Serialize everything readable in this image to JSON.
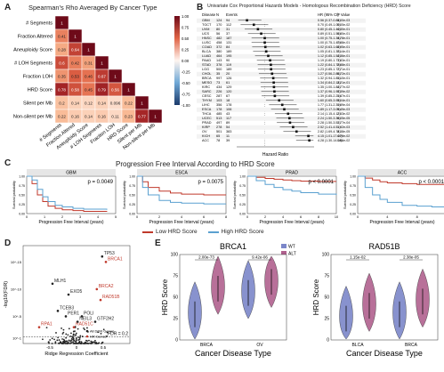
{
  "panel_a": {
    "letter": "A",
    "title": "Spearman's Rho Averaged By Cancer Type",
    "labels": [
      "# Segments",
      "Fraction Altered",
      "Aneuploidy Score",
      "# LOH Segments",
      "Fraction LOH",
      "HRD Score",
      "Silent per Mb",
      "Non-silent per Mb"
    ],
    "colorbar_ticks": [
      "1.00",
      "0.75",
      "0.50",
      "0.25",
      "0.00",
      "-0.25",
      "-0.50",
      "-0.75",
      "-1.00"
    ],
    "chart_data": {
      "type": "heatmap",
      "title": "Spearman's Rho Averaged By Cancer Type",
      "rows": [
        "# Segments",
        "Fraction Altered",
        "Aneuploidy Score",
        "# LOH Segments",
        "Fraction LOH",
        "HRD Score",
        "Silent per Mb",
        "Non-silent per Mb"
      ],
      "columns": [
        "# Segments",
        "Fraction Altered",
        "Aneuploidy Score",
        "# LOH Segments",
        "Fraction LOH",
        "HRD Score",
        "Silent per Mb",
        "Non-silent per Mb"
      ],
      "lower_triangle_values": [
        [
          1
        ],
        [
          0.41,
          1
        ],
        [
          0.28,
          0.64,
          1
        ],
        [
          0.6,
          0.42,
          0.31,
          1
        ],
        [
          0.35,
          0.53,
          0.46,
          0.67,
          1
        ],
        [
          0.78,
          0.58,
          0.45,
          0.79,
          0.56,
          1
        ],
        [
          0.2,
          0.14,
          0.12,
          0.14,
          0.096,
          0.22,
          1
        ],
        [
          0.22,
          0.16,
          0.14,
          0.16,
          0.11,
          0.23,
          0.77,
          1
        ]
      ],
      "color_range": [
        -1,
        1
      ]
    }
  },
  "panel_b": {
    "letter": "B",
    "title": "Univariate Cox Proportional Hazards Models - Homologous Recombination Deficiency (HRD) Score",
    "col_headers": [
      "Disease",
      "N",
      "Events",
      "HR (95% CI)",
      "P Value"
    ],
    "xlabel": "Hazard Ratio",
    "chart_data": {
      "type": "scatter",
      "title": "Univariate Cox Proportional Hazards Models - Homologous Recombination Deficiency (HRD) Score",
      "xlabel": "Hazard Ratio",
      "rows": [
        {
          "disease": "GBM",
          "n": "124",
          "events": "94",
          "hr": 0.56,
          "text": "0.56 (0.37-0.84)",
          "p": "5.00e-03"
        },
        {
          "disease": "TGCT",
          "n": "170",
          "events": "112",
          "hr": 0.7,
          "text": "0.70 (0.49-1.00)",
          "p": "5.00e-02"
        },
        {
          "disease": "UVM",
          "n": "80",
          "events": "31",
          "hr": 0.8,
          "text": "0.80 (0.45-1.40)",
          "p": "4.30e-01"
        },
        {
          "disease": "UCS",
          "n": "56",
          "events": "37",
          "hr": 0.89,
          "text": "0.89 (0.51-1.55)",
          "p": "6.80e-01"
        },
        {
          "disease": "HNSC",
          "n": "482",
          "text": "1.00 (0.75-1.34)",
          "events": "187",
          "hr": 1.0,
          "p": "9.78e-01"
        },
        {
          "disease": "LUSC",
          "n": "458",
          "events": "131",
          "hr": 1.0,
          "text": "1.00 (0.75-1.40)",
          "p": "7.88e-01"
        },
        {
          "disease": "COAD",
          "n": "372",
          "events": "84",
          "hr": 1.02,
          "text": "1.02 (0.63-1.62)",
          "p": "8.95e-01"
        },
        {
          "disease": "BLCA",
          "n": "380",
          "events": "189",
          "hr": 1.05,
          "text": "1.05 (0.81-1.36)",
          "p": "7.14e-01"
        },
        {
          "disease": "LUAD",
          "n": "464",
          "events": "195",
          "hr": 1.12,
          "text": "1.12 (0.85-1.52)",
          "p": "4.36e-01"
        },
        {
          "disease": "PAAD",
          "n": "143",
          "events": "90",
          "hr": 1.19,
          "text": "1.19 (0.80-1.77)",
          "p": "3.83e-01"
        },
        {
          "disease": "STAD",
          "n": "378",
          "events": "119",
          "hr": 1.22,
          "text": "1.22 (0.84-1.78)",
          "p": "2.88e-01"
        },
        {
          "disease": "LGG",
          "n": "500",
          "events": "189",
          "hr": 1.23,
          "text": "1.23 (0.85-1.77)",
          "p": "2.71e-01"
        },
        {
          "disease": "CHOL",
          "n": "35",
          "events": "20",
          "hr": 1.27,
          "text": "1.27 (0.56-2.86)",
          "p": "5.72e-01"
        },
        {
          "disease": "BRCA",
          "n": "997",
          "events": "126",
          "hr": 1.32,
          "text": "1.32 (0.94-1.85)",
          "p": "1.10e-01"
        },
        {
          "disease": "MESO",
          "n": "73",
          "events": "61",
          "hr": 1.34,
          "text": "1.34 (0.84-2.14)",
          "p": "2.21e-01"
        },
        {
          "disease": "KIRC",
          "n": "434",
          "events": "129",
          "hr": 1.35,
          "text": "1.35 (1.00-1.82)",
          "p": "4.77e-02"
        },
        {
          "disease": "SARC",
          "n": "226",
          "events": "120",
          "hr": 1.37,
          "text": "1.37 (0.96-1.97)",
          "p": "8.39e-02"
        },
        {
          "disease": "CESC",
          "n": "287",
          "events": "67",
          "hr": 1.39,
          "text": "1.39 (0.85-2.25)",
          "p": "1.87e-01"
        },
        {
          "disease": "THYM",
          "n": "103",
          "events": "18",
          "hr": 1.6,
          "text": "1.60 (0.65-3.95)",
          "p": "3.04e-01"
        },
        {
          "disease": "LIHC",
          "n": "356",
          "events": "178",
          "hr": 1.77,
          "text": "1.77 (1.31-2.39)",
          "p": "1.89e-04"
        },
        {
          "disease": "ESCA",
          "n": "178",
          "events": "106",
          "hr": 1.89,
          "text": "1.89 (1.17-3.05)",
          "p": "9.49e-03"
        },
        {
          "disease": "THCA",
          "n": "485",
          "events": "43",
          "hr": 2.14,
          "text": "2.14 (1.15-4.12)",
          "p": "2.53e-02"
        },
        {
          "disease": "UCEC",
          "n": "513",
          "events": "117",
          "hr": 2.24,
          "text": "2.24 (1.50-3.36)",
          "p": "9.05e-05"
        },
        {
          "disease": "PRAD",
          "n": "497",
          "events": "89",
          "hr": 2.28,
          "text": "2.28 (1.50-3.52)",
          "p": "1.77e-04"
        },
        {
          "disease": "KIRP",
          "n": "278",
          "events": "54",
          "hr": 2.52,
          "text": "2.52 (1.41-4.51)",
          "p": "1.92e-03"
        },
        {
          "disease": "OV",
          "n": "501",
          "events": "383",
          "hr": 2.82,
          "text": "2.82 (1.69-4.74)",
          "p": "8.38e-05"
        },
        {
          "disease": "KICH",
          "n": "65",
          "events": "11",
          "hr": 4.15,
          "text": "4.15 (1.01-17.05)",
          "p": "4.79e-02"
        },
        {
          "disease": "ACC",
          "n": "78",
          "events": "39",
          "hr": 4.28,
          "text": "4.28 (1.30-14.08)",
          "p": "1.66e-02"
        }
      ]
    }
  },
  "panel_c": {
    "letter": "C",
    "title": "Progression Free Interval According to HRD Score",
    "ylabel": "Survival probability",
    "xlabel": "Progression Free Interval (years)",
    "legend": [
      "Low HRD Score",
      "High HRD Score"
    ],
    "colors": {
      "low": "#c0392b",
      "high": "#5aa0d0"
    },
    "chart_data": [
      {
        "type": "line",
        "title": "GBM",
        "annotation": "p = 0.0049",
        "x_ticks": [
          "0",
          "1",
          "2",
          "3",
          "4",
          "5"
        ],
        "y_ticks": [
          "0.00",
          "0.25",
          "0.50",
          "0.75",
          "1.00"
        ],
        "series": [
          {
            "name": "Low HRD Score",
            "x": [
              0,
              0.3,
              0.6,
              0.9,
              1.2,
              1.6,
              2.0,
              2.6,
              3.2,
              4.5
            ],
            "y": [
              1.0,
              0.8,
              0.5,
              0.32,
              0.2,
              0.14,
              0.1,
              0.08,
              0.06,
              0.05
            ]
          },
          {
            "name": "High HRD Score",
            "x": [
              0,
              0.3,
              0.6,
              0.9,
              1.2,
              1.6,
              2.0,
              2.6,
              3.2,
              4.5
            ],
            "y": [
              1.0,
              0.9,
              0.65,
              0.45,
              0.32,
              0.22,
              0.18,
              0.14,
              0.12,
              0.1
            ]
          }
        ]
      },
      {
        "type": "line",
        "title": "ESCA",
        "annotation": "p = 0.0075",
        "x_ticks": [
          "0",
          "2",
          "4",
          "6",
          "8"
        ],
        "y_ticks": [
          "0.00",
          "0.25",
          "0.50",
          "0.75",
          "1.00"
        ],
        "series": [
          {
            "name": "Low HRD Score",
            "x": [
              0,
              0.5,
              1,
              2,
              3,
              4,
              6,
              8
            ],
            "y": [
              1.0,
              0.85,
              0.7,
              0.6,
              0.55,
              0.52,
              0.5,
              0.5
            ]
          },
          {
            "name": "High HRD Score",
            "x": [
              0,
              0.5,
              1,
              2,
              3,
              4,
              6,
              8
            ],
            "y": [
              1.0,
              0.7,
              0.5,
              0.35,
              0.3,
              0.28,
              0.26,
              0.26
            ]
          }
        ]
      },
      {
        "type": "line",
        "title": "PRAD",
        "annotation": "p < 0.0001",
        "x_ticks": [
          "0",
          "2",
          "4",
          "6",
          "8",
          "10"
        ],
        "y_ticks": [
          "0.00",
          "0.25",
          "0.50",
          "0.75",
          "1.00"
        ],
        "series": [
          {
            "name": "Low HRD Score",
            "x": [
              0,
              1,
              2,
              3,
              4,
              5,
              6,
              8,
              10
            ],
            "y": [
              1.0,
              0.97,
              0.94,
              0.92,
              0.9,
              0.88,
              0.87,
              0.86,
              0.86
            ]
          },
          {
            "name": "High HRD Score",
            "x": [
              0,
              1,
              2,
              3,
              4,
              5,
              6,
              8,
              10
            ],
            "y": [
              1.0,
              0.88,
              0.78,
              0.7,
              0.64,
              0.6,
              0.56,
              0.52,
              0.5
            ]
          }
        ]
      },
      {
        "type": "line",
        "title": "ACC",
        "annotation": "p < 0.0001",
        "x_ticks": [
          "0",
          "4",
          "8",
          "12"
        ],
        "y_ticks": [
          "0.00",
          "0.25",
          "0.50",
          "0.75",
          "1.00"
        ],
        "series": [
          {
            "name": "Low HRD Score",
            "x": [
              0,
              1,
              2,
              3,
              4,
              6,
              8,
              10,
              12
            ],
            "y": [
              1.0,
              0.95,
              0.9,
              0.85,
              0.82,
              0.8,
              0.78,
              0.78,
              0.78
            ]
          },
          {
            "name": "High HRD Score",
            "x": [
              0,
              1,
              2,
              3,
              4,
              6,
              8,
              10,
              12
            ],
            "y": [
              1.0,
              0.7,
              0.5,
              0.38,
              0.3,
              0.22,
              0.2,
              0.18,
              0.18
            ]
          }
        ]
      }
    ]
  },
  "panel_d": {
    "letter": "D",
    "xlabel": "Ridge Regression Coefficient",
    "ylabel": "-log10(FDR)",
    "x_ticks": [
      "-0.5",
      "0",
      "0.5"
    ],
    "y_ticks": [
      "10^-1",
      "10^-5",
      "10^-10",
      "10^-15"
    ],
    "fdr_label": "FDR = 0.2",
    "legend": [
      "All DDR Genes",
      "HR Genes"
    ],
    "labels": [
      {
        "text": "TP53",
        "red": false
      },
      {
        "text": "BRCA1",
        "red": true
      },
      {
        "text": "MLH1",
        "red": false
      },
      {
        "text": "EXO5",
        "red": false
      },
      {
        "text": "BRCA2",
        "red": true
      },
      {
        "text": "RAD51B",
        "red": true
      },
      {
        "text": "TCEB3",
        "red": false
      },
      {
        "text": "PER1",
        "red": false
      },
      {
        "text": "POLI",
        "red": false
      },
      {
        "text": "NEIL3",
        "red": false
      },
      {
        "text": "GTF2H2",
        "red": false
      },
      {
        "text": "RPA1",
        "red": true
      },
      {
        "text": "RAD51C",
        "red": true
      }
    ],
    "chart_data": {
      "type": "scatter",
      "xlabel": "Ridge Regression Coefficient",
      "ylabel": "-log10(FDR)",
      "series": [
        {
          "name": "HR Genes",
          "points": [
            {
              "label": "BRCA1",
              "x": 0.55,
              "y": 15
            },
            {
              "label": "BRCA2",
              "x": 0.38,
              "y": 10
            },
            {
              "label": "RAD51B",
              "x": 0.45,
              "y": 8
            },
            {
              "label": "RPA1",
              "x": -0.7,
              "y": 3
            },
            {
              "label": "RAD51C",
              "x": -0.05,
              "y": 3
            }
          ]
        },
        {
          "name": "All DDR Genes",
          "points": [
            {
              "label": "TP53",
              "x": 0.48,
              "y": 16
            },
            {
              "label": "MLH1",
              "x": -0.45,
              "y": 11
            },
            {
              "label": "EXO5",
              "x": -0.15,
              "y": 9
            },
            {
              "label": "TCEB3",
              "x": -0.35,
              "y": 6
            },
            {
              "label": "PER1",
              "x": -0.2,
              "y": 5
            },
            {
              "label": "POLI",
              "x": 0.1,
              "y": 5
            },
            {
              "label": "NEIL3",
              "x": 0.02,
              "y": 4
            },
            {
              "label": "GTF2H2",
              "x": 0.35,
              "y": 4
            }
          ]
        }
      ]
    }
  },
  "panel_e": {
    "letter": "E",
    "legend": [
      "WT",
      "ALT"
    ],
    "colors": {
      "wt": "#7b86c9",
      "alt": "#b0608e"
    },
    "ylabel": "HRD Score",
    "xlabel": "Cancer Disease Type",
    "y_ticks": [
      "0",
      "25",
      "50",
      "75",
      "100"
    ],
    "chart_data": [
      {
        "type": "violin",
        "title": "BRCA1",
        "categories": [
          "BRCA",
          "OV"
        ],
        "pvalues": [
          "2.00e-73",
          "9.42e-06"
        ],
        "series": [
          {
            "name": "WT",
            "medians": [
              30,
              55
            ]
          },
          {
            "name": "ALT",
            "medians": [
              60,
              68
            ]
          }
        ],
        "ylim": [
          0,
          100
        ]
      },
      {
        "type": "violin",
        "title": "RAD51B",
        "categories": [
          "BLCA",
          "BRCA"
        ],
        "pvalues": [
          "1.15e-02",
          "2.38e-05"
        ],
        "series": [
          {
            "name": "WT",
            "medians": [
              25,
              30
            ]
          },
          {
            "name": "ALT",
            "medians": [
              40,
              45
            ]
          }
        ],
        "ylim": [
          0,
          100
        ]
      }
    ]
  }
}
